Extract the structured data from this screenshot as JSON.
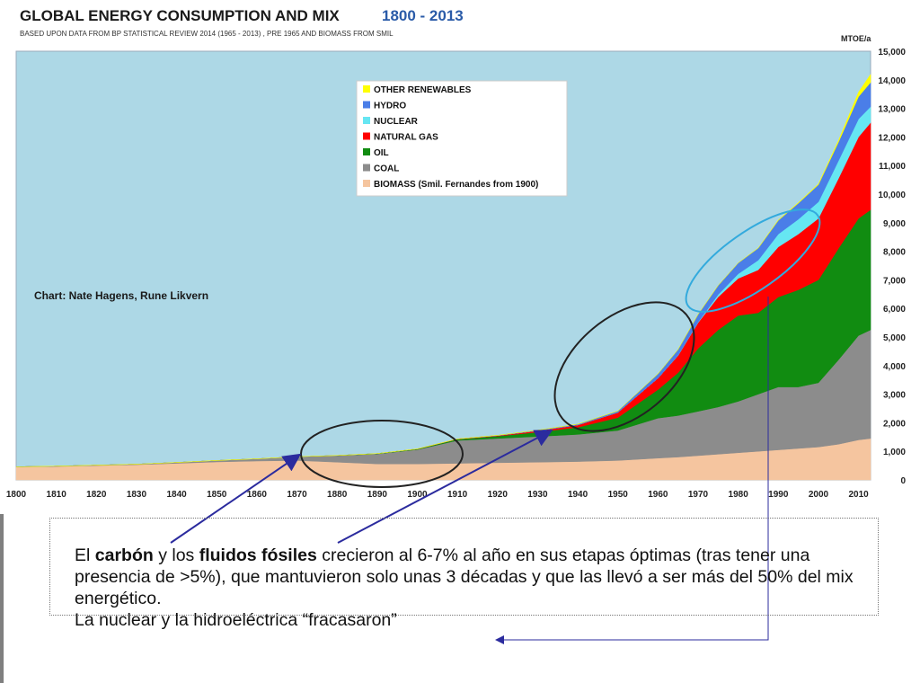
{
  "header": {
    "title": "GLOBAL ENERGY CONSUMPTION AND MIX",
    "title_years": "1800 - 2013",
    "subtitle": "BASED UPON DATA FROM BP STATISTICAL REVIEW 2014 (1965 - 2013) , PRE 1965 AND BIOMASS FROM SMIL",
    "unit": "MTOE/a"
  },
  "credit": "Chart: Nate Hagens, Rune Likvern",
  "chart_data": {
    "type": "area",
    "stacked": true,
    "title": "GLOBAL ENERGY CONSUMPTION AND MIX",
    "xlabel": "",
    "ylabel": "MTOE/a",
    "xlim": [
      1800,
      2013
    ],
    "ylim": [
      0,
      15000
    ],
    "x_ticks": [
      1800,
      1810,
      1820,
      1830,
      1840,
      1850,
      1860,
      1870,
      1880,
      1890,
      1900,
      1910,
      1920,
      1930,
      1940,
      1950,
      1960,
      1970,
      1980,
      1990,
      2000,
      2010
    ],
    "y_ticks": [
      "0",
      "1,000",
      "2,000",
      "3,000",
      "4,000",
      "5,000",
      "6,000",
      "7,000",
      "8,000",
      "9,000",
      "10,000",
      "11,000",
      "12,000",
      "13,000",
      "14,000",
      "15,000"
    ],
    "y_axis_side": "right",
    "background": "#add8e6",
    "x": [
      1800,
      1810,
      1820,
      1830,
      1840,
      1850,
      1860,
      1870,
      1880,
      1890,
      1900,
      1910,
      1920,
      1930,
      1940,
      1950,
      1960,
      1965,
      1970,
      1975,
      1980,
      1985,
      1990,
      1995,
      2000,
      2005,
      2010,
      2013
    ],
    "series": [
      {
        "name": "BIOMASS (Smil. Fernandes from 1900)",
        "color": "#f5c59f",
        "values": [
          450,
          470,
          500,
          530,
          580,
          630,
          660,
          680,
          620,
          560,
          560,
          580,
          600,
          620,
          640,
          680,
          760,
          800,
          850,
          900,
          950,
          1000,
          1050,
          1100,
          1150,
          1250,
          1400,
          1450
        ]
      },
      {
        "name": "COAL",
        "color": "#8c8c8c",
        "values": [
          10,
          12,
          15,
          20,
          30,
          50,
          80,
          130,
          230,
          350,
          500,
          800,
          850,
          900,
          950,
          1050,
          1400,
          1450,
          1550,
          1650,
          1800,
          2000,
          2200,
          2150,
          2250,
          2950,
          3650,
          3800
        ]
      },
      {
        "name": "OIL",
        "color": "#118c11",
        "values": [
          0,
          0,
          0,
          0,
          0,
          0,
          0,
          0,
          5,
          10,
          20,
          40,
          80,
          150,
          250,
          450,
          1000,
          1500,
          2200,
          2700,
          3000,
          2850,
          3150,
          3400,
          3600,
          3900,
          4100,
          4200
        ]
      },
      {
        "name": "NATURAL GAS",
        "color": "#ff0000",
        "values": [
          0,
          0,
          0,
          0,
          0,
          0,
          0,
          0,
          0,
          0,
          5,
          10,
          20,
          50,
          80,
          180,
          400,
          600,
          900,
          1150,
          1300,
          1500,
          1750,
          1950,
          2150,
          2450,
          2850,
          3050
        ]
      },
      {
        "name": "NUCLEAR",
        "color": "#66e6f2",
        "values": [
          0,
          0,
          0,
          0,
          0,
          0,
          0,
          0,
          0,
          0,
          0,
          0,
          0,
          0,
          0,
          0,
          0,
          10,
          20,
          80,
          160,
          340,
          450,
          520,
          580,
          620,
          630,
          560
        ]
      },
      {
        "name": "HYDRO",
        "color": "#4a7ee8",
        "values": [
          0,
          0,
          0,
          0,
          0,
          0,
          0,
          0,
          0,
          0,
          0,
          5,
          10,
          20,
          30,
          50,
          150,
          200,
          270,
          320,
          380,
          420,
          480,
          560,
          600,
          650,
          780,
          850
        ]
      },
      {
        "name": "OTHER RENEWABLES",
        "color": "#ffff00",
        "values": [
          0,
          0,
          0,
          0,
          0,
          0,
          0,
          0,
          0,
          0,
          0,
          0,
          0,
          0,
          0,
          0,
          0,
          0,
          0,
          0,
          0,
          5,
          15,
          20,
          30,
          60,
          160,
          280
        ]
      }
    ],
    "legend_order": [
      "OTHER RENEWABLES",
      "HYDRO",
      "NUCLEAR",
      "NATURAL GAS",
      "OIL",
      "COAL",
      "BIOMASS (Smil. Fernandes from 1900)"
    ],
    "legend_position": "top-center"
  },
  "annotation": {
    "line1_a": "El ",
    "line1_b": "carbón",
    "line1_c": " y los ",
    "line1_d": "fluidos fósiles",
    "line1_e": " crecieron al 6-7% al año en sus etapas óptimas (tras tener una presencia de >5%), que mantuvieron solo unas 3 décadas y que las llevó a ser más del 50% del mix energético.",
    "line2": "La nuclear y la hidroeléctrica “fracasaron”"
  },
  "colors": {
    "ellipse_dark": "#222222",
    "ellipse_blue": "#33aadd",
    "arrow": "#2b2b9e"
  }
}
